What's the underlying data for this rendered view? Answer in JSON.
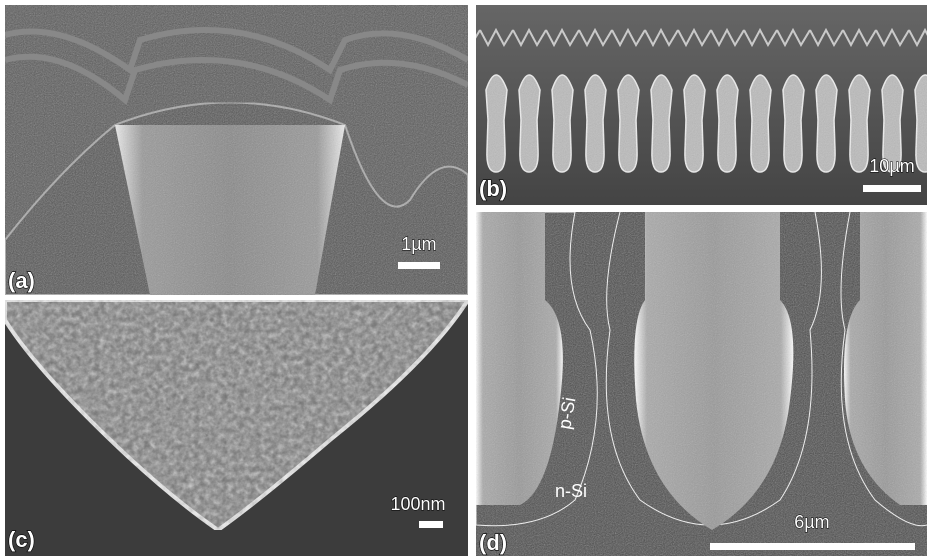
{
  "panels": [
    {
      "label": "(a)",
      "scale_bar": "1µm"
    },
    {
      "label": "(b)",
      "scale_bar": "10µm"
    },
    {
      "label": "(c)",
      "scale_bar": "100nm"
    },
    {
      "label": "(d)",
      "scale_bar": "6µm",
      "annotations": [
        "p-Si",
        "n-Si"
      ]
    }
  ]
}
